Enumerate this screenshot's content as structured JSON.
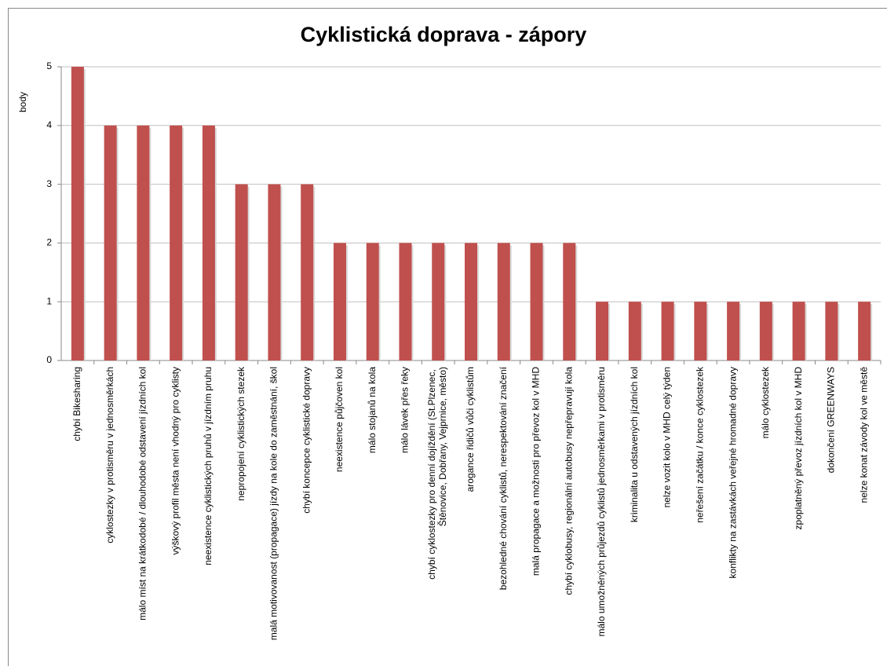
{
  "chart_data": {
    "type": "bar",
    "title": "Cyklistická doprava - zápory",
    "y_label": "body",
    "categories": [
      "chybí Bikesharing",
      "cyklostezky v protisměru v jednosměrkách",
      "málo míst na krátkodobé / dlouhodobé odstavení jízdních kol",
      "výškový profil města není vhodný pro cyklisty",
      "neexistence cyklistických pruhů v jízdním pruhu",
      "nepropojení cyklistických stezek",
      "malá motivovanost (propagace) jízdy na kole do zaměstnání, škol",
      "chybí koncepce cyklistické dopravy",
      "neexistence půjčoven kol",
      "málo stojanů na kola",
      "málo lávek přes řeky",
      "chybí cyklostezky pro denní dojíždění (St.Plzenec, Štěnovice, Dobřany, Vejprnice, město)",
      "arogance řidičů vůči cyklistům",
      "bezohledné chování cyklistů, nerespektování značení",
      "malá propagace a možnosti pro převoz kol v MHD",
      "chybí cyklobusy, regionální autobusy nepřepravují kola",
      "málo umožněných průjezdů cyklistů jednosměrkami v protisměru",
      "kriminalita u odstavených jízdních kol",
      "nelze vozit kolo v MHD celý týden",
      "neřešení začátku / konce cyklostezek",
      "konflikty na zastávkách veřejné hromadné dopravy",
      "málo cyklostezek",
      "zpoplatněný převoz jízdních kol v MHD",
      "dokončení GREENWAYS",
      "nelze konat závody kol ve městě"
    ],
    "values": [
      5,
      4,
      4,
      4,
      4,
      3,
      3,
      3,
      2,
      2,
      2,
      2,
      2,
      2,
      2,
      2,
      1,
      1,
      1,
      1,
      1,
      1,
      1,
      1,
      1
    ],
    "color": "#c0504d",
    "ylim": [
      0,
      5
    ],
    "yticks": [
      0,
      1,
      2,
      3,
      4,
      5
    ],
    "grid": true
  }
}
